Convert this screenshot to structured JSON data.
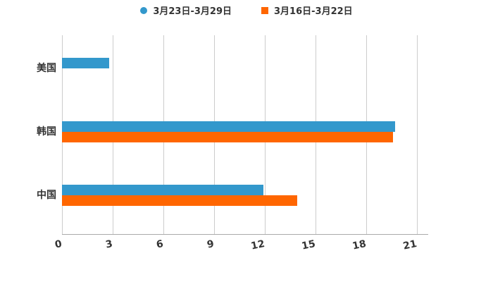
{
  "chart_data": {
    "type": "bar",
    "orientation": "horizontal",
    "title": "",
    "xlabel": "",
    "ylabel": "",
    "categories": [
      "美国",
      "韩国",
      "中国"
    ],
    "series": [
      {
        "name": "3月23日-3月29日",
        "marker": "circle",
        "color": "#3398cc",
        "values": [
          2.8,
          19.7,
          11.9
        ]
      },
      {
        "name": "3月16日-3月22日",
        "marker": "square",
        "color": "#ff6600",
        "values": [
          0,
          19.6,
          13.9
        ]
      }
    ],
    "x_ticks": [
      0,
      3,
      6,
      9,
      12,
      15,
      18,
      21
    ],
    "xlim": [
      0,
      21
    ],
    "grid": "vertical",
    "legend_position": "top-center",
    "colors": {
      "gridline": "#cccccc",
      "axis": "#aaaaaa",
      "text": "#333333",
      "background": "#ffffff"
    }
  }
}
